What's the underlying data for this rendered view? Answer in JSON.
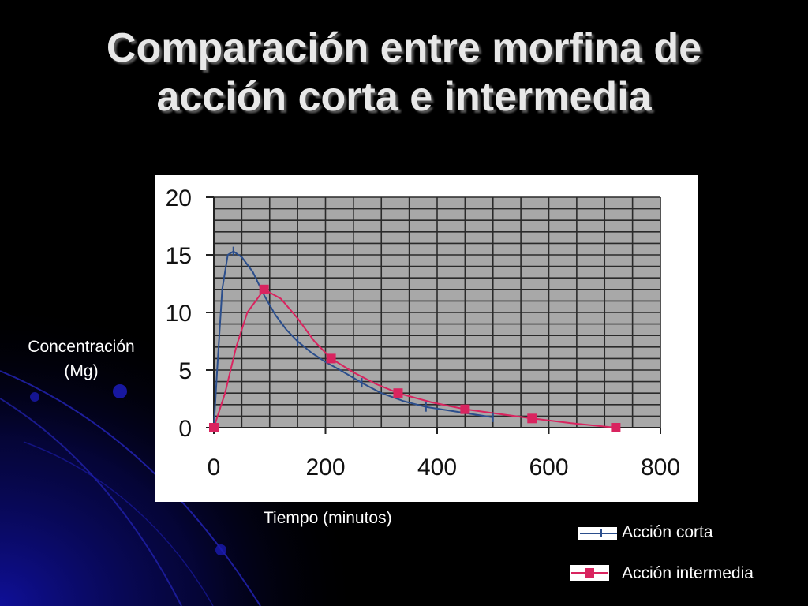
{
  "title": {
    "line1": "Comparación entre morfina de",
    "line2": "acción corta e intermedia"
  },
  "axis_labels": {
    "y_line1": "Concentración",
    "y_line2": "(Mg)",
    "x": "Tiempo (minutos)"
  },
  "legend": [
    {
      "label": "Acción corta",
      "color": "#2b4e8c",
      "marker": "tick"
    },
    {
      "label": "Acción intermedia",
      "color": "#d9245f",
      "marker": "square"
    }
  ],
  "colors": {
    "background": "#000000",
    "panel": "#ffffff",
    "plot_area": "#a8a8a8",
    "grid": "#2a2a2a",
    "accent_blue": "#1a1aa8"
  },
  "chart_data": {
    "type": "line",
    "xlabel": "Tiempo (minutos)",
    "ylabel": "Concentración (Mg)",
    "xlim": [
      0,
      800
    ],
    "ylim": [
      0,
      20
    ],
    "x_ticks": [
      0,
      200,
      400,
      600,
      800
    ],
    "y_ticks": [
      0,
      5,
      10,
      15,
      20
    ],
    "grid": true,
    "legend_position": "bottom-right",
    "series": [
      {
        "name": "Acción corta",
        "color": "#2b4e8c",
        "marker": "tick",
        "points": [
          [
            0,
            0
          ],
          [
            6,
            5
          ],
          [
            15,
            12
          ],
          [
            25,
            15
          ],
          [
            35,
            15.3
          ],
          [
            50,
            14.8
          ],
          [
            70,
            13.5
          ],
          [
            90,
            11.5
          ],
          [
            110,
            9.8
          ],
          [
            130,
            8.5
          ],
          [
            150,
            7.5
          ],
          [
            175,
            6.5
          ],
          [
            200,
            5.7
          ],
          [
            230,
            4.9
          ],
          [
            265,
            3.9
          ],
          [
            300,
            3.0
          ],
          [
            340,
            2.3
          ],
          [
            380,
            1.8
          ],
          [
            420,
            1.5
          ],
          [
            460,
            1.2
          ],
          [
            500,
            0.9
          ]
        ],
        "marker_points": [
          [
            35,
            15.3
          ],
          [
            150,
            7.5
          ],
          [
            265,
            3.9
          ],
          [
            380,
            1.8
          ],
          [
            500,
            0.9
          ]
        ]
      },
      {
        "name": "Acción intermedia",
        "color": "#d9245f",
        "marker": "square",
        "points": [
          [
            0,
            0
          ],
          [
            20,
            3
          ],
          [
            40,
            7
          ],
          [
            60,
            10
          ],
          [
            90,
            12
          ],
          [
            120,
            11.2
          ],
          [
            150,
            9.5
          ],
          [
            180,
            7.5
          ],
          [
            210,
            6
          ],
          [
            250,
            4.8
          ],
          [
            290,
            3.8
          ],
          [
            330,
            3
          ],
          [
            390,
            2.2
          ],
          [
            450,
            1.6
          ],
          [
            510,
            1.2
          ],
          [
            570,
            0.8
          ],
          [
            640,
            0.4
          ],
          [
            720,
            0
          ]
        ],
        "marker_points": [
          [
            0,
            0
          ],
          [
            90,
            12
          ],
          [
            210,
            6
          ],
          [
            330,
            3
          ],
          [
            450,
            1.6
          ],
          [
            570,
            0.8
          ],
          [
            720,
            0
          ]
        ]
      }
    ]
  }
}
